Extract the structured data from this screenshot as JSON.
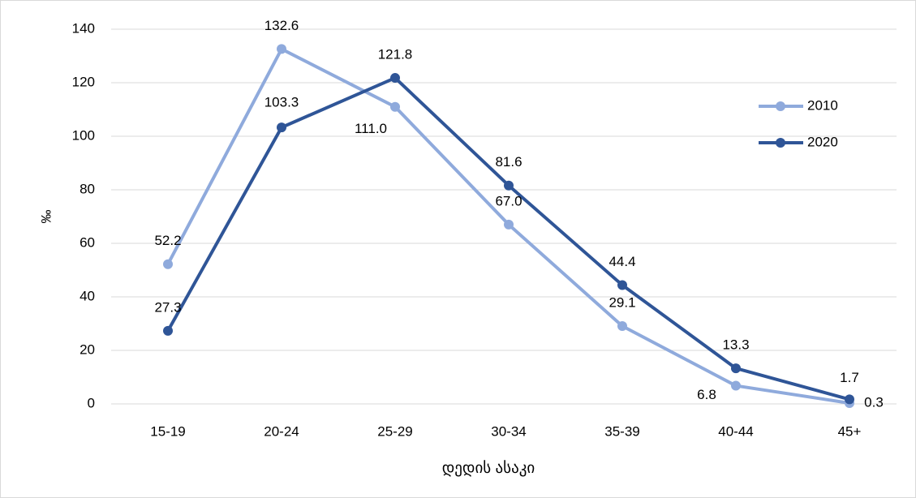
{
  "chart_data": {
    "type": "line",
    "x_label": "დედის ასაკი",
    "y_label": "‰",
    "categories": [
      "15-19",
      "20-24",
      "25-29",
      "30-34",
      "35-39",
      "40-44",
      "45+"
    ],
    "series": [
      {
        "name": "2010",
        "color": "#8faadc",
        "values": [
          52.2,
          132.6,
          111.0,
          67.0,
          29.1,
          6.8,
          0.3
        ],
        "value_labels": [
          "52.2",
          "132.6",
          "111.0",
          "67.0",
          "29.1",
          "6.8",
          "0.3"
        ]
      },
      {
        "name": "2020",
        "color": "#2f5597",
        "values": [
          27.3,
          103.3,
          121.8,
          81.6,
          44.4,
          13.3,
          1.7
        ],
        "value_labels": [
          "27.3",
          "103.3",
          "121.8",
          "81.6",
          "44.4",
          "13.3",
          "1.7"
        ]
      }
    ],
    "ylim": [
      0,
      140
    ],
    "yticks": [
      0,
      20,
      40,
      60,
      80,
      100,
      120,
      140
    ],
    "grid": true,
    "legend": "right"
  }
}
